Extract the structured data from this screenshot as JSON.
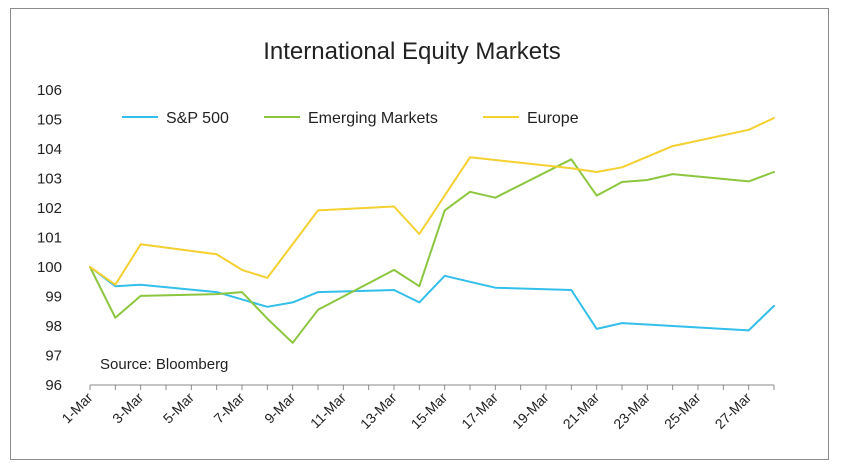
{
  "chart_data": {
    "type": "line",
    "title": "International Equity Markets",
    "annotation": "Source: Bloomberg",
    "xlabel": "",
    "ylabel": "",
    "ylim": [
      96,
      106
    ],
    "yticks": [
      96,
      97,
      98,
      99,
      100,
      101,
      102,
      103,
      104,
      105,
      106
    ],
    "grid": false,
    "legend_position": "top-left",
    "x_tick_labels": [
      "1-Mar",
      "3-Mar",
      "5-Mar",
      "7-Mar",
      "9-Mar",
      "11-Mar",
      "13-Mar",
      "15-Mar",
      "17-Mar",
      "19-Mar",
      "21-Mar",
      "23-Mar",
      "25-Mar",
      "27-Mar"
    ],
    "x_start": "1-Mar",
    "x_end": "28-Mar",
    "series": [
      {
        "name": "S&P 500",
        "color": "#33bfea",
        "x": [
          "1-Mar",
          "2-Mar",
          "3-Mar",
          "6-Mar",
          "7-Mar",
          "8-Mar",
          "9-Mar",
          "10-Mar",
          "13-Mar",
          "14-Mar",
          "15-Mar",
          "16-Mar",
          "17-Mar",
          "20-Mar",
          "21-Mar",
          "22-Mar",
          "23-Mar",
          "24-Mar",
          "27-Mar",
          "28-Mar"
        ],
        "values": [
          100.0,
          99.35,
          99.4,
          99.15,
          98.9,
          98.65,
          98.8,
          99.15,
          99.22,
          98.8,
          99.7,
          99.5,
          99.3,
          99.22,
          97.9,
          98.1,
          98.05,
          98.0,
          97.85,
          98.68
        ]
      },
      {
        "name": "Emerging Markets",
        "color": "#8cc63f",
        "x": [
          "1-Mar",
          "2-Mar",
          "3-Mar",
          "6-Mar",
          "7-Mar",
          "8-Mar",
          "9-Mar",
          "10-Mar",
          "13-Mar",
          "14-Mar",
          "15-Mar",
          "16-Mar",
          "17-Mar",
          "20-Mar",
          "21-Mar",
          "22-Mar",
          "23-Mar",
          "24-Mar",
          "27-Mar",
          "28-Mar"
        ],
        "values": [
          100.0,
          98.28,
          99.02,
          99.08,
          99.15,
          98.25,
          97.43,
          98.55,
          99.9,
          99.35,
          101.92,
          102.55,
          102.35,
          103.65,
          102.42,
          102.88,
          102.95,
          103.15,
          102.9,
          103.22
        ]
      },
      {
        "name": "Europe",
        "color": "#f4d030",
        "x": [
          "1-Mar",
          "2-Mar",
          "3-Mar",
          "6-Mar",
          "7-Mar",
          "8-Mar",
          "10-Mar",
          "13-Mar",
          "14-Mar",
          "16-Mar",
          "20-Mar",
          "21-Mar",
          "22-Mar",
          "24-Mar",
          "27-Mar",
          "28-Mar"
        ],
        "values": [
          100.0,
          99.4,
          100.77,
          100.43,
          99.9,
          99.63,
          101.92,
          102.05,
          101.12,
          103.72,
          103.35,
          103.22,
          103.38,
          104.1,
          104.65,
          105.05
        ]
      }
    ]
  }
}
